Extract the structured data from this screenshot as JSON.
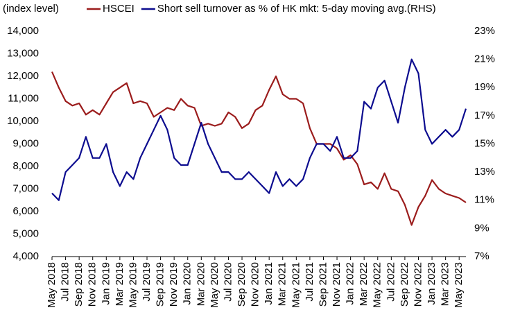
{
  "chart_data": {
    "type": "line",
    "y_label": "(index level)",
    "categories": [
      "May 2018",
      null,
      "Jul 2018",
      null,
      "Sep 2018",
      null,
      "Nov 2018",
      null,
      "Jan 2019",
      null,
      "Mar 2019",
      null,
      "May 2019",
      null,
      "Jul 2019",
      null,
      "Sep 2019",
      null,
      "Nov 2019",
      null,
      "Jan 2020",
      null,
      "Mar 2020",
      null,
      "May 2020",
      null,
      "Jul 2020",
      null,
      "Sep 2020",
      null,
      "Nov 2020",
      null,
      "Jan 2021",
      null,
      "Mar 2021",
      null,
      "May 2021",
      null,
      "Jul 2021",
      null,
      "Sep 2021",
      null,
      "Nov 2021",
      null,
      "Jan 2022",
      null,
      "Mar 2022",
      null,
      "May 2022",
      null,
      "Jul 2022",
      null,
      "Sep 2022",
      null,
      "Nov 2022",
      null,
      "Jan 2023",
      null,
      "Mar 2023",
      null,
      "May 2023",
      null
    ],
    "series": [
      {
        "name": "HSCEI",
        "color": "#9b1c1c",
        "values": [
          12200,
          11500,
          10900,
          10700,
          10800,
          10300,
          10500,
          10300,
          10800,
          11300,
          11500,
          11700,
          10800,
          10900,
          10800,
          10200,
          10400,
          10600,
          10500,
          11000,
          10700,
          10600,
          9800,
          9900,
          9800,
          9900,
          10400,
          10200,
          9700,
          9900,
          10500,
          10700,
          11400,
          12000,
          11200,
          11000,
          11000,
          10800,
          9700,
          9000,
          9000,
          9000,
          8800,
          8300,
          8500,
          8100,
          7200,
          7300,
          7000,
          7700,
          7000,
          6900,
          6300,
          5400,
          6200,
          6700,
          7400,
          7000,
          6800,
          6700,
          6600,
          6400
        ]
      },
      {
        "name": "Short sell turnover as % of HK mkt: 5-day moving avg.(RHS)",
        "color": "#0c0c8f",
        "axis": "y2",
        "values": [
          11.5,
          11,
          13,
          13.5,
          14,
          15.5,
          14,
          14,
          15,
          13,
          12,
          13,
          12.5,
          14,
          15,
          16,
          17,
          16,
          14,
          13.5,
          13.5,
          15,
          16.5,
          15,
          14,
          13,
          13,
          12.5,
          12.5,
          13,
          12.5,
          12,
          11.5,
          13,
          12,
          12.5,
          12,
          12.5,
          14,
          15,
          15,
          14.5,
          15.5,
          14,
          14,
          14.5,
          18,
          17.5,
          19,
          19.5,
          18,
          16.5,
          19,
          21,
          20,
          16,
          15,
          15.5,
          16,
          15.5,
          16,
          17.5
        ]
      }
    ],
    "ylim": [
      4000,
      14000
    ],
    "yticks": [
      {
        "value": 4000,
        "label": "4,000"
      },
      {
        "value": 5000,
        "label": "5,000"
      },
      {
        "value": 6000,
        "label": "6,000"
      },
      {
        "value": 7000,
        "label": "7,000"
      },
      {
        "value": 8000,
        "label": "8,000"
      },
      {
        "value": 9000,
        "label": "9,000"
      },
      {
        "value": 10000,
        "label": "10,000"
      },
      {
        "value": 11000,
        "label": "11,000"
      },
      {
        "value": 12000,
        "label": "12,000"
      },
      {
        "value": 13000,
        "label": "13,000"
      },
      {
        "value": 14000,
        "label": "14,000"
      }
    ],
    "y2lim": [
      7,
      23
    ],
    "y2ticks": [
      {
        "value": 7,
        "label": "7%"
      },
      {
        "value": 9,
        "label": "9%"
      },
      {
        "value": 11,
        "label": "11%"
      },
      {
        "value": 13,
        "label": "13%"
      },
      {
        "value": 15,
        "label": "15%"
      },
      {
        "value": 17,
        "label": "17%"
      },
      {
        "value": 19,
        "label": "19%"
      },
      {
        "value": 21,
        "label": "21%"
      },
      {
        "value": 23,
        "label": "23%"
      }
    ],
    "grid": false
  }
}
